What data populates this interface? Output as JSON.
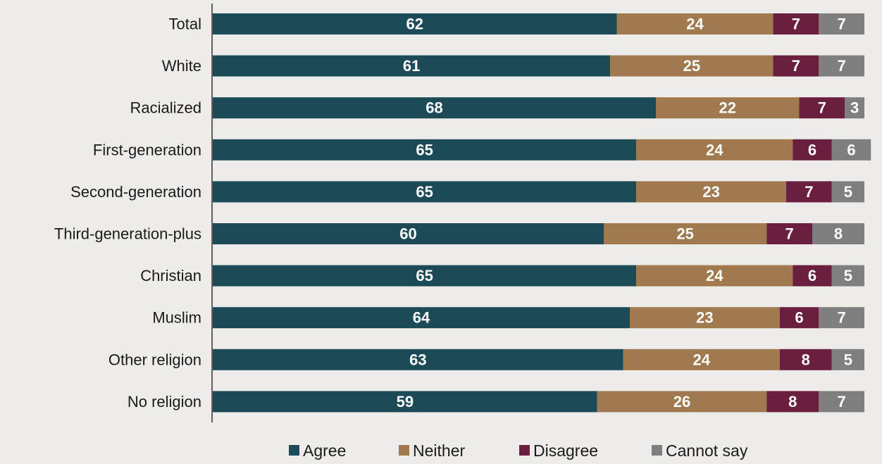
{
  "chart_data": {
    "type": "bar",
    "orientation": "horizontal",
    "stacked": true,
    "categories": [
      "Total",
      "White",
      "Racialized",
      "First-generation",
      "Second-generation",
      "Third-generation-plus",
      "Christian",
      "Muslim",
      "Other religion",
      "No religion"
    ],
    "series": [
      {
        "name": "Agree",
        "color": "#1c4a57",
        "values": [
          62,
          61,
          68,
          65,
          65,
          60,
          65,
          64,
          63,
          59
        ]
      },
      {
        "name": "Neither",
        "color": "#a07a4e",
        "values": [
          24,
          25,
          22,
          24,
          23,
          25,
          24,
          23,
          24,
          26
        ]
      },
      {
        "name": "Disagree",
        "color": "#6b1f3f",
        "values": [
          7,
          7,
          7,
          6,
          7,
          7,
          6,
          6,
          8,
          8
        ]
      },
      {
        "name": "Cannot say",
        "color": "#7f7f7f",
        "values": [
          7,
          7,
          3,
          6,
          5,
          8,
          5,
          7,
          5,
          7
        ]
      }
    ],
    "xlim": [
      0,
      100
    ],
    "grid": false,
    "legend_position": "bottom"
  }
}
